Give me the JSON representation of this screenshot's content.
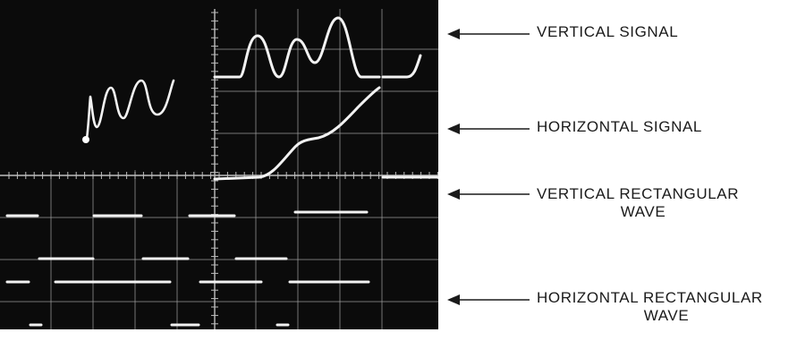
{
  "labels": {
    "vertical_signal": "VERTICAL SIGNAL",
    "horizontal_signal": "HORIZONTAL SIGNAL",
    "vertical_rect_line1": "VERTICAL RECTANGULAR",
    "vertical_rect_line2": "WAVE",
    "horizontal_rect_line1": "HORIZONTAL RECTANGULAR",
    "horizontal_rect_line2": "WAVE"
  },
  "colors": {
    "screen": "#0b0b0b",
    "trace": "#f2f2f2",
    "graticule": "#9a9a9a",
    "text": "#1a1a1a"
  }
}
